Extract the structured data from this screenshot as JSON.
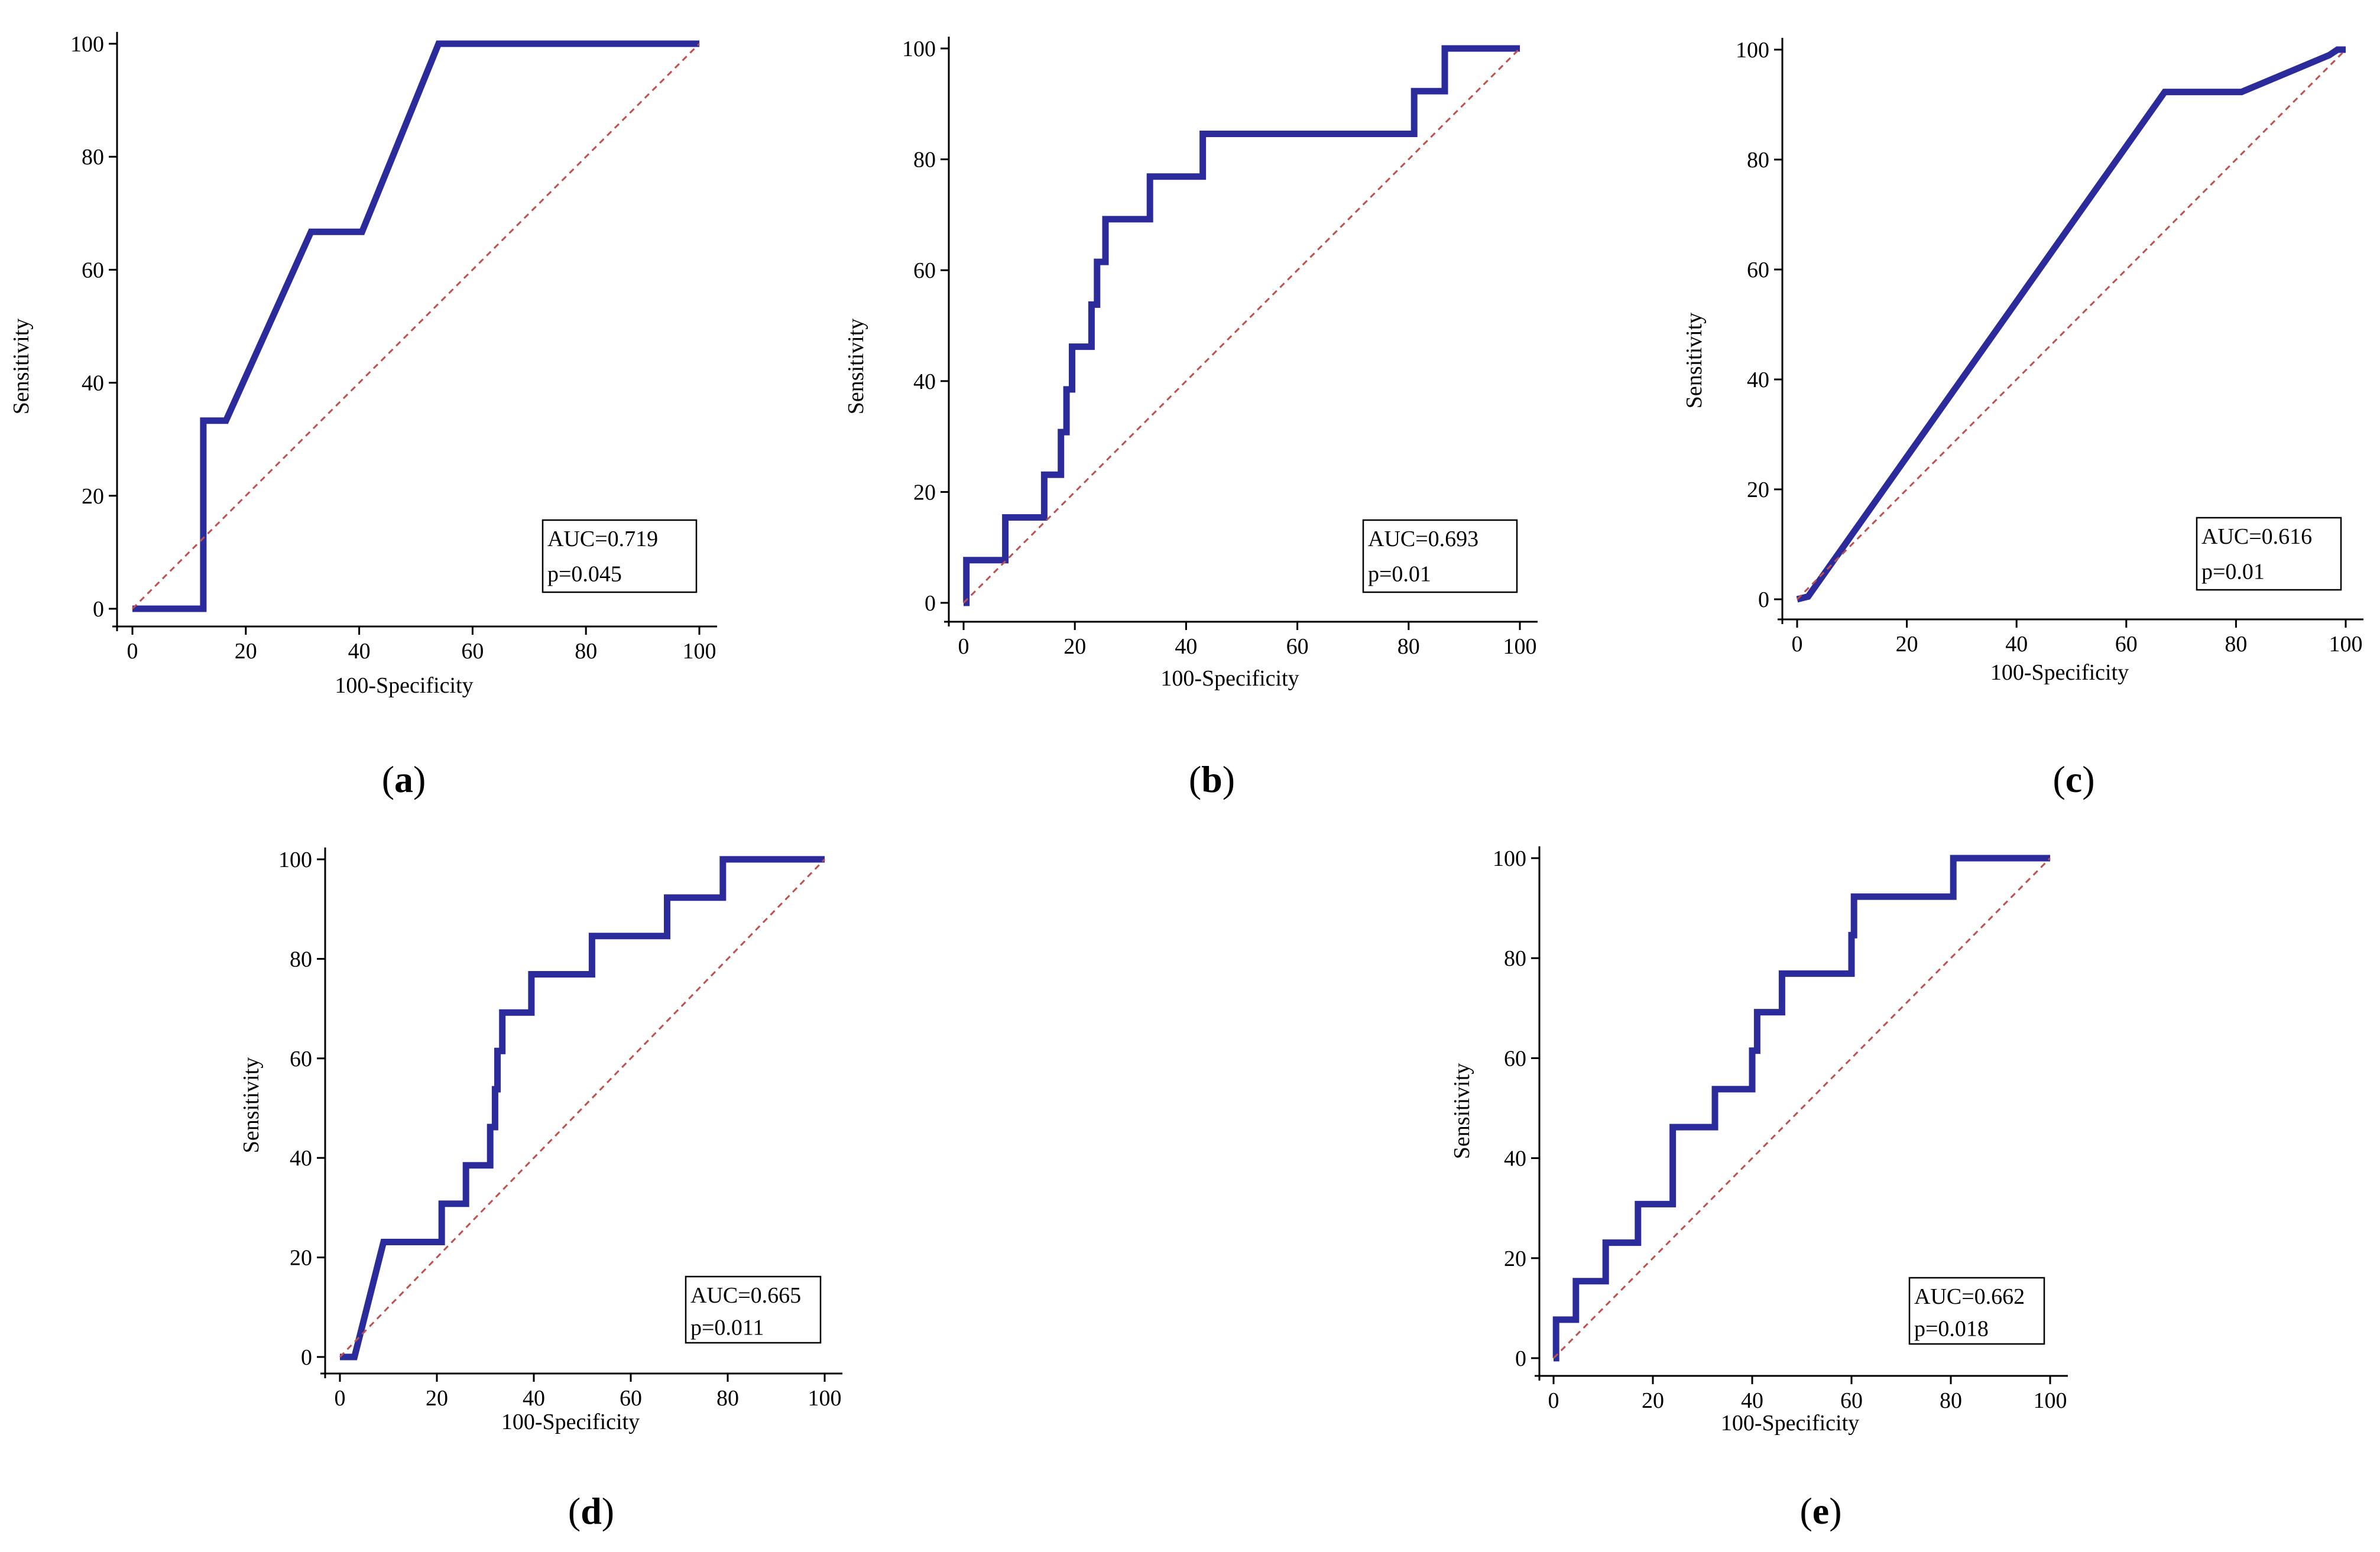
{
  "colors": {
    "roc": "#2b2b9b",
    "diagonal": "#c0504d",
    "axis": "#000000"
  },
  "chart_data": [
    {
      "type": "line",
      "panel_label": "a",
      "xlabel": "100-Specificity",
      "ylabel": "Sensitivity",
      "xlim": [
        0,
        100
      ],
      "ylim": [
        0,
        100
      ],
      "xticks": [
        0,
        20,
        40,
        60,
        80,
        100
      ],
      "yticks": [
        0,
        20,
        40,
        60,
        80,
        100
      ],
      "tick_labels": [
        "0",
        "20",
        "40",
        "60",
        "80",
        "100"
      ],
      "series": [
        {
          "name": "ROC",
          "x": [
            0,
            12.5,
            12.5,
            16.5,
            31.5,
            40.5,
            54,
            100
          ],
          "y": [
            0,
            0,
            33.3,
            33.3,
            66.7,
            66.7,
            100,
            100
          ]
        },
        {
          "name": "Reference",
          "x": [
            0,
            100
          ],
          "y": [
            0,
            100
          ]
        }
      ],
      "legend": {
        "placement": "bottom-right",
        "lines": [
          "AUC=0.719",
          "p=0.045"
        ]
      }
    },
    {
      "type": "line",
      "panel_label": "b",
      "xlabel": "100-Specificity",
      "ylabel": "Sensitivity",
      "xlim": [
        0,
        100
      ],
      "ylim": [
        0,
        100
      ],
      "xticks": [
        0,
        20,
        40,
        60,
        80,
        100
      ],
      "yticks": [
        0,
        20,
        40,
        60,
        80,
        100
      ],
      "tick_labels": [
        "0",
        "20",
        "40",
        "60",
        "80",
        "100"
      ],
      "series": [
        {
          "name": "ROC",
          "x": [
            0,
            0.5,
            0.5,
            7.5,
            7.5,
            14.5,
            14.5,
            17.5,
            17.5,
            18.5,
            18.5,
            19.5,
            19.5,
            23,
            23,
            24,
            24,
            25.5,
            25.5,
            33.5,
            33.5,
            43,
            43,
            81,
            81,
            86.5,
            86.5,
            100
          ],
          "y": [
            0,
            0,
            7.7,
            7.7,
            15.4,
            15.4,
            23.1,
            23.1,
            30.8,
            30.8,
            38.5,
            38.5,
            46.2,
            46.2,
            53.8,
            53.8,
            61.5,
            61.5,
            69.2,
            69.2,
            76.9,
            76.9,
            84.6,
            84.6,
            92.3,
            92.3,
            100,
            100
          ]
        },
        {
          "name": "Reference",
          "x": [
            0,
            100
          ],
          "y": [
            0,
            100
          ]
        }
      ],
      "legend": {
        "placement": "bottom-right",
        "lines": [
          "AUC=0.693",
          "p=0.01"
        ]
      }
    },
    {
      "type": "line",
      "panel_label": "c",
      "xlabel": "100-Specificity",
      "ylabel": "Sensitivity",
      "xlim": [
        0,
        100
      ],
      "ylim": [
        0,
        100
      ],
      "xticks": [
        0,
        20,
        40,
        60,
        80,
        100
      ],
      "yticks": [
        0,
        20,
        40,
        60,
        80,
        100
      ],
      "tick_labels": [
        "0",
        "20",
        "40",
        "60",
        "80",
        "100"
      ],
      "series": [
        {
          "name": "ROC",
          "x": [
            0,
            2,
            67,
            81,
            97,
            98.5,
            100
          ],
          "y": [
            0,
            0.5,
            92.3,
            92.3,
            99,
            100,
            100
          ]
        },
        {
          "name": "Reference",
          "x": [
            0,
            100
          ],
          "y": [
            0,
            100
          ]
        }
      ],
      "legend": {
        "placement": "bottom-right",
        "lines": [
          "AUC=0.616",
          "p=0.01"
        ]
      }
    },
    {
      "type": "line",
      "panel_label": "d",
      "xlabel": "100-Specificity",
      "ylabel": "Sensitivity",
      "xlim": [
        0,
        100
      ],
      "ylim": [
        0,
        100
      ],
      "xticks": [
        0,
        20,
        40,
        60,
        80,
        100
      ],
      "yticks": [
        0,
        20,
        40,
        60,
        80,
        100
      ],
      "tick_labels": [
        "0",
        "20",
        "40",
        "60",
        "80",
        "100"
      ],
      "series": [
        {
          "name": "ROC",
          "x": [
            0,
            3,
            9,
            21,
            21,
            26,
            26,
            31,
            31,
            32,
            32,
            32.5,
            32.5,
            33.5,
            33.5,
            39.5,
            39.5,
            52,
            52,
            67.5,
            67.5,
            79,
            79,
            100
          ],
          "y": [
            0,
            0,
            23.1,
            23.1,
            30.8,
            30.8,
            38.5,
            38.5,
            46.2,
            46.2,
            53.8,
            53.8,
            61.5,
            61.5,
            69.2,
            69.2,
            76.9,
            76.9,
            84.6,
            84.6,
            92.3,
            92.3,
            100,
            100
          ]
        },
        {
          "name": "Reference",
          "x": [
            0,
            100
          ],
          "y": [
            0,
            100
          ]
        }
      ],
      "legend": {
        "placement": "bottom-right",
        "lines": [
          "AUC=0.665",
          "p=0.011"
        ]
      }
    },
    {
      "type": "line",
      "panel_label": "e",
      "xlabel": "100-Specificity",
      "ylabel": "Sensitivity",
      "xlim": [
        0,
        100
      ],
      "ylim": [
        0,
        100
      ],
      "xticks": [
        0,
        20,
        40,
        60,
        80,
        100
      ],
      "yticks": [
        0,
        20,
        40,
        60,
        80,
        100
      ],
      "tick_labels": [
        "0",
        "20",
        "40",
        "60",
        "80",
        "100"
      ],
      "series": [
        {
          "name": "ROC",
          "x": [
            0,
            0.5,
            0.5,
            4.5,
            4.5,
            10.5,
            10.5,
            17,
            17,
            24,
            24,
            32.5,
            32.5,
            40,
            40,
            41,
            41,
            46,
            46,
            60,
            60,
            60.5,
            60.5,
            80.5,
            80.5,
            100
          ],
          "y": [
            0,
            0,
            7.7,
            7.7,
            15.4,
            15.4,
            23.1,
            23.1,
            30.8,
            30.8,
            46.2,
            46.2,
            53.8,
            53.8,
            61.5,
            61.5,
            69.2,
            69.2,
            76.9,
            76.9,
            84.6,
            84.6,
            92.3,
            92.3,
            100,
            100
          ]
        },
        {
          "name": "Reference",
          "x": [
            0,
            100
          ],
          "y": [
            0,
            100
          ]
        }
      ],
      "legend": {
        "placement": "bottom-right",
        "lines": [
          "AUC=0.662",
          "p=0.018"
        ]
      }
    }
  ]
}
